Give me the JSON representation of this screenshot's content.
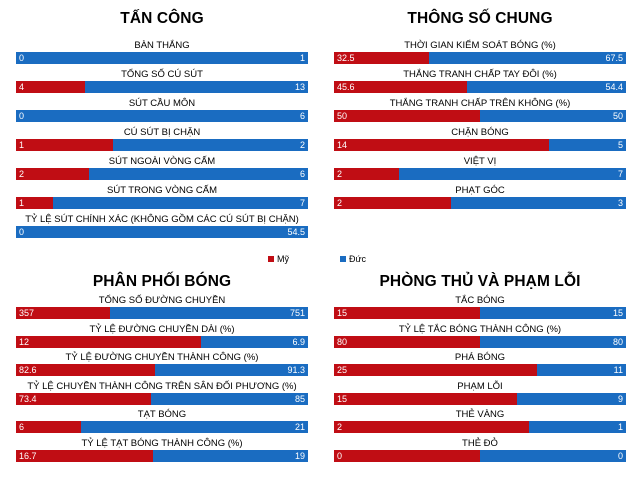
{
  "legend": {
    "team_a": "Mỹ",
    "team_b": "Đức",
    "color_a": "#c00d14",
    "color_b": "#1a6cc1"
  },
  "panels": [
    {
      "title": "TẤN CÔNG",
      "stats": [
        {
          "label": "BÀN THẮNG",
          "a": "0",
          "b": "1"
        },
        {
          "label": "TỔNG SỐ CÚ SÚT",
          "a": "4",
          "b": "13"
        },
        {
          "label": "SÚT CẦU MÔN",
          "a": "0",
          "b": "6"
        },
        {
          "label": "CÚ SÚT BỊ CHẶN",
          "a": "1",
          "b": "2"
        },
        {
          "label": "SÚT  NGOÀI VÒNG CẤM",
          "a": "2",
          "b": "6"
        },
        {
          "label": "SÚT TRONG VÒNG CẤM",
          "a": "1",
          "b": "7"
        },
        {
          "label": "TỶ LỆ SÚT CHÍNH XÁC (KHÔNG GỒM CÁC CÚ SÚT BỊ CHẶN)",
          "a": "0",
          "b": "54.5"
        }
      ]
    },
    {
      "title": "THÔNG SỐ CHUNG",
      "stats": [
        {
          "label": "THỜI GIAN KIỂM SOÁT BÓNG (%)",
          "a": "32.5",
          "b": "67.5"
        },
        {
          "label": "THẮNG TRANH CHẤP TAY ĐÔI (%)",
          "a": "45.6",
          "b": "54.4"
        },
        {
          "label": "THẮNG TRANH CHẤP TRÊN KHÔNG (%)",
          "a": "50",
          "b": "50"
        },
        {
          "label": "CHẶN BÓNG",
          "a": "14",
          "b": "5"
        },
        {
          "label": "VIỆT VỊ",
          "a": "2",
          "b": "7"
        },
        {
          "label": "PHẠT GÓC",
          "a": "2",
          "b": "3"
        }
      ]
    },
    {
      "title": "PHÂN PHỐI BÓNG",
      "stats": [
        {
          "label": "TỔNG SỐ ĐƯỜNG CHUYỀN",
          "a": "357",
          "b": "751"
        },
        {
          "label": "TỶ LỆ ĐƯỜNG CHUYỀN DÀI (%)",
          "a": "12",
          "b": "6.9"
        },
        {
          "label": "TỶ LỆ ĐƯỜNG CHUYỀN THÀNH CÔNG (%)",
          "a": "82.6",
          "b": "91.3"
        },
        {
          "label": "TỶ LỆ CHUYỀN THÀNH CÔNG TRÊN SÂN ĐỐI PHƯƠNG (%)",
          "a": "73.4",
          "b": "85"
        },
        {
          "label": "TẠT BÓNG",
          "a": "6",
          "b": "21"
        },
        {
          "label": "TỶ LỆ TẠT BÓNG THÀNH CÔNG (%)",
          "a": "16.7",
          "b": "19"
        }
      ]
    },
    {
      "title": "PHÒNG THỦ VÀ PHẠM LỖI",
      "stats": [
        {
          "label": "TẮC BÓNG",
          "a": "15",
          "b": "15"
        },
        {
          "label": "TỶ LỆ TẮC BÓNG THÀNH CÔNG (%)",
          "a": "80",
          "b": "80"
        },
        {
          "label": "PHÁ BÓNG",
          "a": "25",
          "b": "11"
        },
        {
          "label": "PHẠM LỖI",
          "a": "15",
          "b": "9"
        },
        {
          "label": "THẺ VÀNG",
          "a": "2",
          "b": "1"
        },
        {
          "label": "THẺ ĐỎ",
          "a": "0",
          "b": "0"
        }
      ]
    }
  ],
  "chart_data": {
    "type": "bar",
    "orientation": "horizontal-stacked-100",
    "series": [
      {
        "name": "Mỹ",
        "color": "#c00d14"
      },
      {
        "name": "Đức",
        "color": "#1a6cc1"
      }
    ],
    "groups": [
      {
        "title": "TẤN CÔNG",
        "categories": [
          "BÀN THẮNG",
          "TỔNG SỐ CÚ SÚT",
          "SÚT CẦU MÔN",
          "CÚ SÚT BỊ CHẶN",
          "SÚT  NGOÀI VÒNG CẤM",
          "SÚT TRONG VÒNG CẤM",
          "TỶ LỆ SÚT CHÍNH XÁC (KHÔNG GỒM CÁC CÚ SÚT BỊ CHẶN)"
        ],
        "values_a": [
          0,
          4,
          0,
          1,
          2,
          1,
          0
        ],
        "values_b": [
          1,
          13,
          6,
          2,
          6,
          7,
          54.5
        ]
      },
      {
        "title": "THÔNG SỐ CHUNG",
        "categories": [
          "THỜI GIAN KIỂM SOÁT BÓNG (%)",
          "THẮNG TRANH CHẤP TAY ĐÔI (%)",
          "THẮNG TRANH CHẤP TRÊN KHÔNG (%)",
          "CHẶN BÓNG",
          "VIỆT VỊ",
          "PHẠT GÓC"
        ],
        "values_a": [
          32.5,
          45.6,
          50,
          14,
          2,
          2
        ],
        "values_b": [
          67.5,
          54.4,
          50,
          5,
          7,
          3
        ]
      },
      {
        "title": "PHÂN PHỐI BÓNG",
        "categories": [
          "TỔNG SỐ ĐƯỜNG CHUYỀN",
          "TỶ LỆ ĐƯỜNG CHUYỀN DÀI (%)",
          "TỶ LỆ ĐƯỜNG CHUYỀN THÀNH CÔNG (%)",
          "TỶ LỆ CHUYỀN THÀNH CÔNG TRÊN SÂN ĐỐI PHƯƠNG (%)",
          "TẠT BÓNG",
          "TỶ LỆ TẠT BÓNG THÀNH CÔNG (%)"
        ],
        "values_a": [
          357,
          12,
          82.6,
          73.4,
          6,
          16.7
        ],
        "values_b": [
          751,
          6.9,
          91.3,
          85,
          21,
          19
        ]
      },
      {
        "title": "PHÒNG THỦ VÀ PHẠM LỖI",
        "categories": [
          "TẮC BÓNG",
          "TỶ LỆ TẮC BÓNG THÀNH CÔNG (%)",
          "PHÁ BÓNG",
          "PHẠM LỖI",
          "THẺ VÀNG",
          "THẺ ĐỎ"
        ],
        "values_a": [
          15,
          80,
          25,
          15,
          2,
          0
        ],
        "values_b": [
          15,
          80,
          11,
          9,
          1,
          0
        ]
      }
    ]
  }
}
